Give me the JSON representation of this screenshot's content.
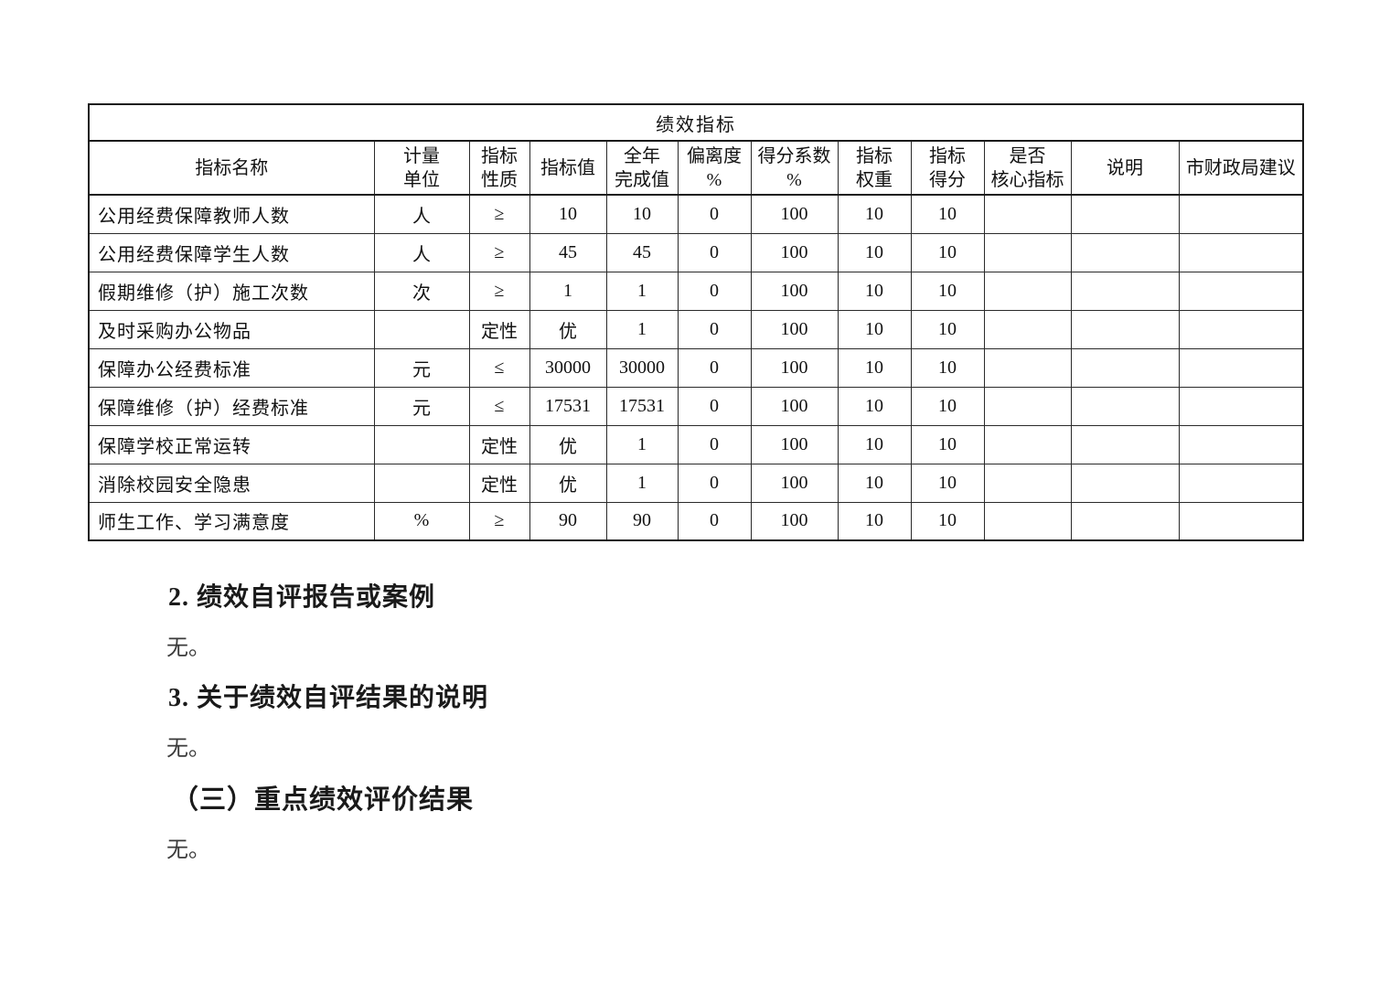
{
  "table": {
    "title": "绩效指标",
    "headers": [
      "指标名称",
      "计量\n单位",
      "指标\n性质",
      "指标值",
      "全年\n完成值",
      "偏离度\n%",
      "得分系数\n%",
      "指标\n权重",
      "指标\n得分",
      "是否\n核心指标",
      "说明",
      "市财政局建议"
    ],
    "rows": [
      [
        "公用经费保障教师人数",
        "人",
        "≥",
        "10",
        "10",
        "0",
        "100",
        "10",
        "10",
        "",
        "",
        ""
      ],
      [
        "公用经费保障学生人数",
        "人",
        "≥",
        "45",
        "45",
        "0",
        "100",
        "10",
        "10",
        "",
        "",
        ""
      ],
      [
        "假期维修（护）施工次数",
        "次",
        "≥",
        "1",
        "1",
        "0",
        "100",
        "10",
        "10",
        "",
        "",
        ""
      ],
      [
        "及时采购办公物品",
        "",
        "定性",
        "优",
        "1",
        "0",
        "100",
        "10",
        "10",
        "",
        "",
        ""
      ],
      [
        "保障办公经费标准",
        "元",
        "≤",
        "30000",
        "30000",
        "0",
        "100",
        "10",
        "10",
        "",
        "",
        ""
      ],
      [
        "保障维修（护）经费标准",
        "元",
        "≤",
        "17531",
        "17531",
        "0",
        "100",
        "10",
        "10",
        "",
        "",
        ""
      ],
      [
        "保障学校正常运转",
        "",
        "定性",
        "优",
        "1",
        "0",
        "100",
        "10",
        "10",
        "",
        "",
        ""
      ],
      [
        "消除校园安全隐患",
        "",
        "定性",
        "优",
        "1",
        "0",
        "100",
        "10",
        "10",
        "",
        "",
        ""
      ],
      [
        "师生工作、学习满意度",
        "%",
        "≥",
        "90",
        "90",
        "0",
        "100",
        "10",
        "10",
        "",
        "",
        ""
      ]
    ]
  },
  "sections": [
    {
      "heading": "2. 绩效自评报告或案例",
      "body": "无。"
    },
    {
      "heading": "3. 关于绩效自评结果的说明",
      "body": "无。"
    },
    {
      "heading": "（三）重点绩效评价结果",
      "body": "无。"
    }
  ],
  "colors": {
    "text": "#1a1a1a",
    "border": "#1a1a1a",
    "background": "#ffffff"
  }
}
